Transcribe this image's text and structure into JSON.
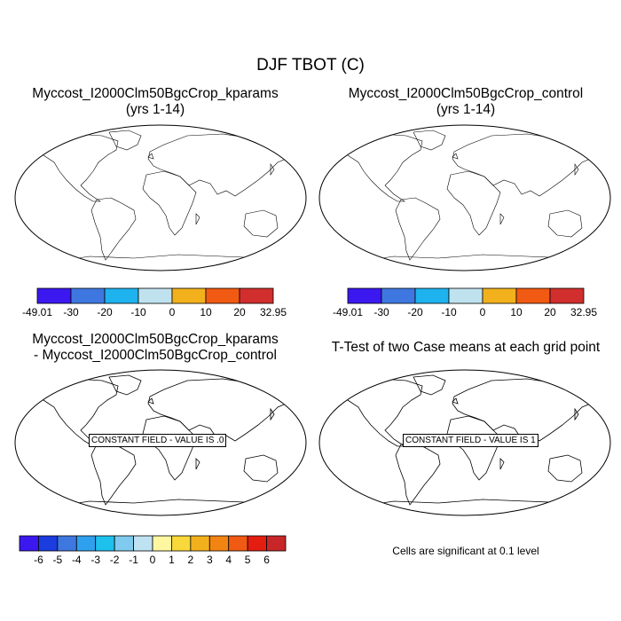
{
  "page": {
    "title": "DJF TBOT (C)"
  },
  "panels": {
    "p1": {
      "title_line1": "Myccost_I2000Clm50BgcCrop_kparams",
      "title_line2": "(yrs 1-14)"
    },
    "p2": {
      "title_line1": "Myccost_I2000Clm50BgcCrop_control",
      "title_line2": "(yrs 1-14)"
    },
    "p3": {
      "title_line1": "Myccost_I2000Clm50BgcCrop_kparams",
      "title_line2": "- Myccost_I2000Clm50BgcCrop_control",
      "field_message": "CONSTANT FIELD - VALUE IS .0"
    },
    "p4": {
      "title_line1": "T-Test of two Case means at each grid point",
      "field_message": "CONSTANT FIELD - VALUE IS 1"
    }
  },
  "colorbars": {
    "temperature": {
      "labels": [
        "-49.01",
        "-30",
        "-20",
        "-10",
        "0",
        "10",
        "20",
        "32.95"
      ],
      "colors": [
        "#3b18f0",
        "#3f77e0",
        "#1eb2ee",
        "#bfe2ee",
        "#f2b11c",
        "#f15a12",
        "#d12f2d"
      ]
    },
    "difference": {
      "labels": [
        "-6",
        "-5",
        "-4",
        "-3",
        "-2",
        "-1",
        "0",
        "1",
        "2",
        "3",
        "4",
        "5",
        "6"
      ],
      "colors": [
        "#3b18f0",
        "#1b3cde",
        "#3f77e0",
        "#2fa0ee",
        "#1ec0ee",
        "#7fcaee",
        "#bfe2f3",
        "#fdf7a0",
        "#f8d83a",
        "#f2b11c",
        "#f28512",
        "#f15a12",
        "#e31e10",
        "#c8272a"
      ]
    }
  },
  "footer": {
    "significance_note": "Cells are significant at 0.1 level"
  }
}
